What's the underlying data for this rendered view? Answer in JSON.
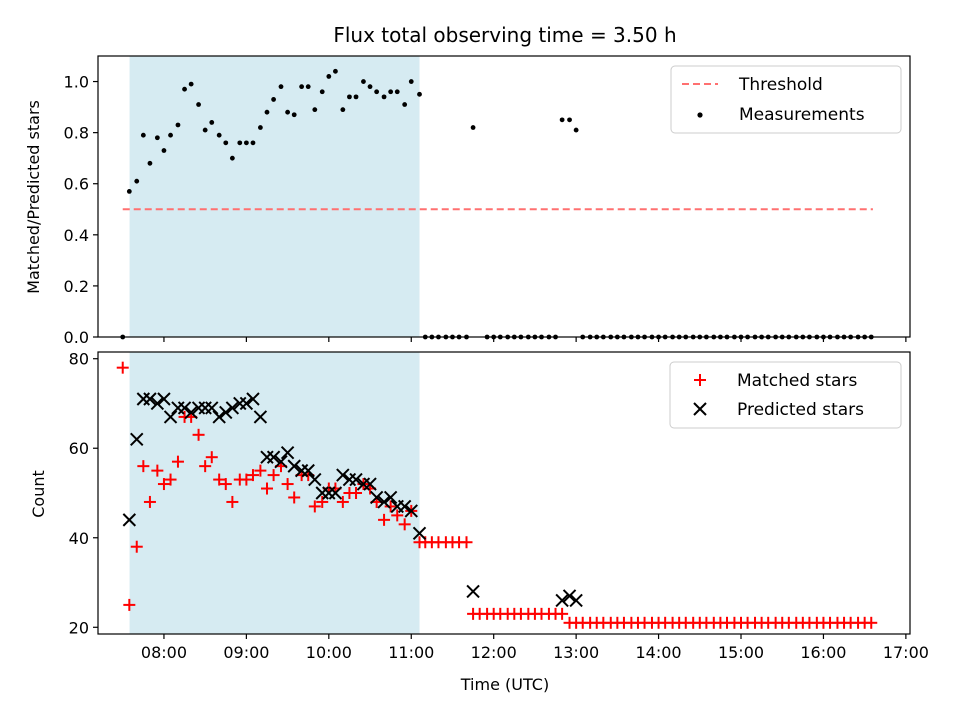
{
  "chart_data": [
    {
      "type": "scatter",
      "title": "Flux total observing time = 3.50 h",
      "xlabel": "",
      "ylabel": "Matched/Predicted stars",
      "xlim": [
        7.2,
        17.05
      ],
      "ylim": [
        0.0,
        1.1
      ],
      "yticks": [
        0.0,
        0.2,
        0.4,
        0.6,
        0.8,
        1.0
      ],
      "ytick_labels": [
        "0.0",
        "0.2",
        "0.4",
        "0.6",
        "0.8",
        "1.0"
      ],
      "shaded_span": [
        7.583,
        11.1
      ],
      "threshold": {
        "name": "Threshold",
        "value": 0.5,
        "x_range": [
          7.5,
          16.6
        ],
        "color": "#ff7070",
        "style": "dashed"
      },
      "series": [
        {
          "name": "Measurements",
          "marker": "dot",
          "color": "#000000",
          "x": [
            7.5,
            7.58,
            7.67,
            7.75,
            7.83,
            7.92,
            8.0,
            8.08,
            8.17,
            8.25,
            8.33,
            8.42,
            8.5,
            8.58,
            8.67,
            8.75,
            8.83,
            8.92,
            9.0,
            9.08,
            9.17,
            9.25,
            9.33,
            9.42,
            9.5,
            9.58,
            9.67,
            9.75,
            9.83,
            9.92,
            10.0,
            10.08,
            10.17,
            10.25,
            10.33,
            10.42,
            10.5,
            10.58,
            10.67,
            10.75,
            10.83,
            10.92,
            11.0,
            11.1,
            11.17,
            11.25,
            11.33,
            11.42,
            11.5,
            11.58,
            11.67,
            11.75,
            11.92,
            12.0,
            12.08,
            12.17,
            12.25,
            12.33,
            12.42,
            12.5,
            12.58,
            12.67,
            12.75,
            12.83,
            12.92,
            13.0,
            13.08,
            13.17,
            13.25,
            13.33,
            13.42,
            13.5,
            13.58,
            13.67,
            13.75,
            13.83,
            13.92,
            14.0,
            14.08,
            14.17,
            14.25,
            14.33,
            14.42,
            14.5,
            14.58,
            14.67,
            14.75,
            14.83,
            14.92,
            15.0,
            15.08,
            15.17,
            15.25,
            15.33,
            15.42,
            15.5,
            15.58,
            15.67,
            15.75,
            15.83,
            15.92,
            16.0,
            16.08,
            16.17,
            16.25,
            16.33,
            16.42,
            16.5,
            16.58
          ],
          "y": [
            0.0,
            0.57,
            0.61,
            0.79,
            0.68,
            0.78,
            0.73,
            0.79,
            0.83,
            0.97,
            0.99,
            0.91,
            0.81,
            0.84,
            0.79,
            0.76,
            0.7,
            0.76,
            0.76,
            0.76,
            0.82,
            0.88,
            0.93,
            0.98,
            0.88,
            0.87,
            0.98,
            0.98,
            0.89,
            0.96,
            1.02,
            1.04,
            0.89,
            0.94,
            0.94,
            1.0,
            0.98,
            0.96,
            0.94,
            0.96,
            0.96,
            0.91,
            1.0,
            0.95,
            0.0,
            0.0,
            0.0,
            0.0,
            0.0,
            0.0,
            0.0,
            0.82,
            0.0,
            0.0,
            0.0,
            0.0,
            0.0,
            0.0,
            0.0,
            0.0,
            0.0,
            0.0,
            0.0,
            0.85,
            0.85,
            0.81,
            0.0,
            0.0,
            0.0,
            0.0,
            0.0,
            0.0,
            0.0,
            0.0,
            0.0,
            0.0,
            0.0,
            0.0,
            0.0,
            0.0,
            0.0,
            0.0,
            0.0,
            0.0,
            0.0,
            0.0,
            0.0,
            0.0,
            0.0,
            0.0,
            0.0,
            0.0,
            0.0,
            0.0,
            0.0,
            0.0,
            0.0,
            0.0,
            0.0,
            0.0,
            0.0,
            0.0,
            0.0,
            0.0,
            0.0,
            0.0,
            0.0,
            0.0,
            0.0
          ]
        }
      ],
      "legend": {
        "placement": "top-right",
        "entries": [
          "Threshold",
          "Measurements"
        ]
      }
    },
    {
      "type": "scatter",
      "title": "",
      "xlabel": "Time (UTC)",
      "ylabel": "Count",
      "xlim": [
        7.2,
        17.05
      ],
      "ylim": [
        18.5,
        81.5
      ],
      "yticks": [
        20,
        40,
        60,
        80
      ],
      "ytick_labels": [
        "20",
        "40",
        "60",
        "80"
      ],
      "xticks": [
        8,
        9,
        10,
        11,
        12,
        13,
        14,
        15,
        16,
        17
      ],
      "xtick_labels": [
        "08:00",
        "09:00",
        "10:00",
        "11:00",
        "12:00",
        "13:00",
        "14:00",
        "15:00",
        "16:00",
        "17:00"
      ],
      "shaded_span": [
        7.583,
        11.1
      ],
      "series": [
        {
          "name": "Matched stars",
          "marker": "plus",
          "color": "#ff0000",
          "x": [
            7.5,
            7.58,
            7.67,
            7.75,
            7.83,
            7.92,
            8.0,
            8.08,
            8.17,
            8.25,
            8.33,
            8.42,
            8.5,
            8.58,
            8.67,
            8.75,
            8.83,
            8.92,
            9.0,
            9.08,
            9.17,
            9.25,
            9.33,
            9.42,
            9.5,
            9.58,
            9.67,
            9.75,
            9.83,
            9.92,
            10.0,
            10.08,
            10.17,
            10.25,
            10.33,
            10.42,
            10.5,
            10.58,
            10.67,
            10.75,
            10.83,
            10.92,
            11.0,
            11.1,
            11.17,
            11.25,
            11.33,
            11.42,
            11.5,
            11.58,
            11.67,
            11.75,
            11.83,
            11.92,
            12.0,
            12.08,
            12.17,
            12.25,
            12.33,
            12.42,
            12.5,
            12.58,
            12.67,
            12.75,
            12.83,
            12.92,
            13.0,
            13.08,
            13.17,
            13.25,
            13.33,
            13.42,
            13.5,
            13.58,
            13.67,
            13.75,
            13.83,
            13.92,
            14.0,
            14.08,
            14.17,
            14.25,
            14.33,
            14.42,
            14.5,
            14.58,
            14.67,
            14.75,
            14.83,
            14.92,
            15.0,
            15.08,
            15.17,
            15.25,
            15.33,
            15.42,
            15.5,
            15.58,
            15.67,
            15.75,
            15.83,
            15.92,
            16.0,
            16.08,
            16.17,
            16.25,
            16.33,
            16.42,
            16.5,
            16.58
          ],
          "y": [
            78,
            25,
            38,
            56,
            48,
            55,
            52,
            53,
            57,
            67,
            67,
            63,
            56,
            58,
            53,
            52,
            48,
            53,
            53,
            54,
            55,
            51,
            54,
            56,
            52,
            49,
            54,
            54,
            47,
            48,
            51,
            51,
            48,
            50,
            50,
            52,
            51,
            48,
            44,
            47,
            45,
            43,
            46,
            39,
            39,
            39,
            39,
            39,
            39,
            39,
            39,
            23,
            23,
            23,
            23,
            23,
            23,
            23,
            23,
            23,
            23,
            23,
            23,
            23,
            23,
            21,
            21,
            21,
            21,
            21,
            21,
            21,
            21,
            21,
            21,
            21,
            21,
            21,
            21,
            21,
            21,
            21,
            21,
            21,
            21,
            21,
            21,
            21,
            21,
            21,
            21,
            21,
            21,
            21,
            21,
            21,
            21,
            21,
            21,
            21,
            21,
            21,
            21,
            21,
            21,
            21,
            21,
            21,
            21,
            21
          ]
        },
        {
          "name": "Predicted stars",
          "marker": "x",
          "color": "#000000",
          "x": [
            7.58,
            7.67,
            7.75,
            7.83,
            7.92,
            8.0,
            8.08,
            8.17,
            8.25,
            8.33,
            8.42,
            8.5,
            8.58,
            8.67,
            8.75,
            8.83,
            8.92,
            9.0,
            9.08,
            9.17,
            9.25,
            9.33,
            9.42,
            9.5,
            9.58,
            9.67,
            9.75,
            9.83,
            9.92,
            10.0,
            10.08,
            10.17,
            10.25,
            10.33,
            10.42,
            10.5,
            10.58,
            10.67,
            10.75,
            10.83,
            10.92,
            11.0,
            11.1,
            11.75,
            12.83,
            12.92,
            13.0
          ],
          "y": [
            44,
            62,
            71,
            71,
            70,
            71,
            67,
            69,
            69,
            68,
            69,
            69,
            69,
            67,
            68,
            69,
            70,
            70,
            71,
            67,
            58,
            58,
            57,
            59,
            56,
            55,
            55,
            53,
            50,
            50,
            50,
            54,
            53,
            53,
            52,
            52,
            49,
            48,
            49,
            47,
            47,
            46,
            41,
            28,
            26,
            27,
            26
          ]
        }
      ],
      "legend": {
        "placement": "top-right",
        "entries": [
          "Matched stars",
          "Predicted stars"
        ]
      }
    }
  ]
}
